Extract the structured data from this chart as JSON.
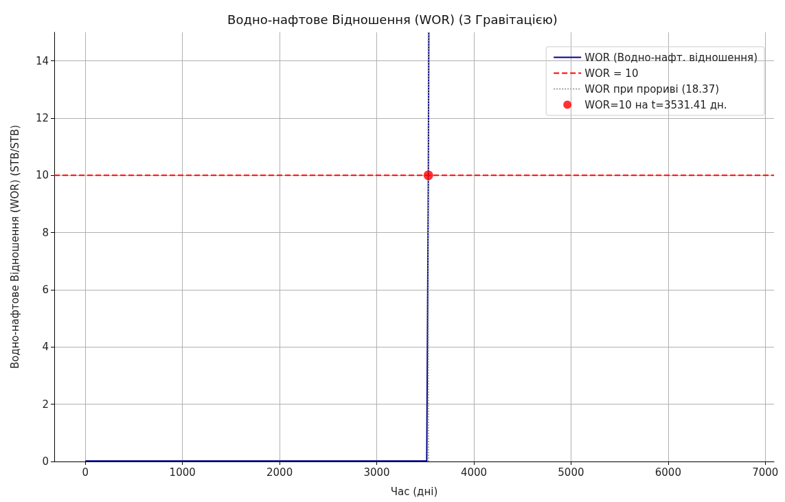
{
  "chart_data": {
    "type": "line",
    "title": "Водно-нафтове Відношення (WOR) (З Гравітацією)",
    "xlabel": "Час (дні)",
    "ylabel": "Водно-нафтове Відношення (WOR) (STB/STB)",
    "xlim": [
      -320,
      7090
    ],
    "xticks": [
      0,
      1000,
      2000,
      3000,
      4000,
      5000,
      6000,
      7000
    ],
    "ylim": [
      0,
      15
    ],
    "yticks": [
      0,
      2,
      4,
      6,
      8,
      10,
      12,
      14
    ],
    "series": [
      {
        "name": "WOR (Водно-нафт. відношення)",
        "color": "#00008b",
        "x": [
          0,
          3515,
          3531.41,
          3536
        ],
        "values": [
          0.02,
          0.02,
          10,
          15
        ],
        "line_style": "solid",
        "marker": "none"
      },
      {
        "name": "WOR при прориві (18.37)",
        "color": "#a0a0a0",
        "x": [
          3531.41,
          3531.41
        ],
        "values": [
          0,
          15
        ],
        "line_style": "dotted",
        "marker": "none"
      },
      {
        "name": "WOR=10 на t=3531.41 дн.",
        "type": "scatter",
        "color": "#ff0000",
        "x": [
          3531.41
        ],
        "values": [
          10
        ],
        "marker": "circle"
      }
    ],
    "ref_lines": [
      {
        "axis": "y",
        "value": 10,
        "label": "WOR = 10",
        "color": "#ff0000",
        "line_style": "dashed"
      }
    ],
    "grid": true,
    "legend": "top right"
  }
}
